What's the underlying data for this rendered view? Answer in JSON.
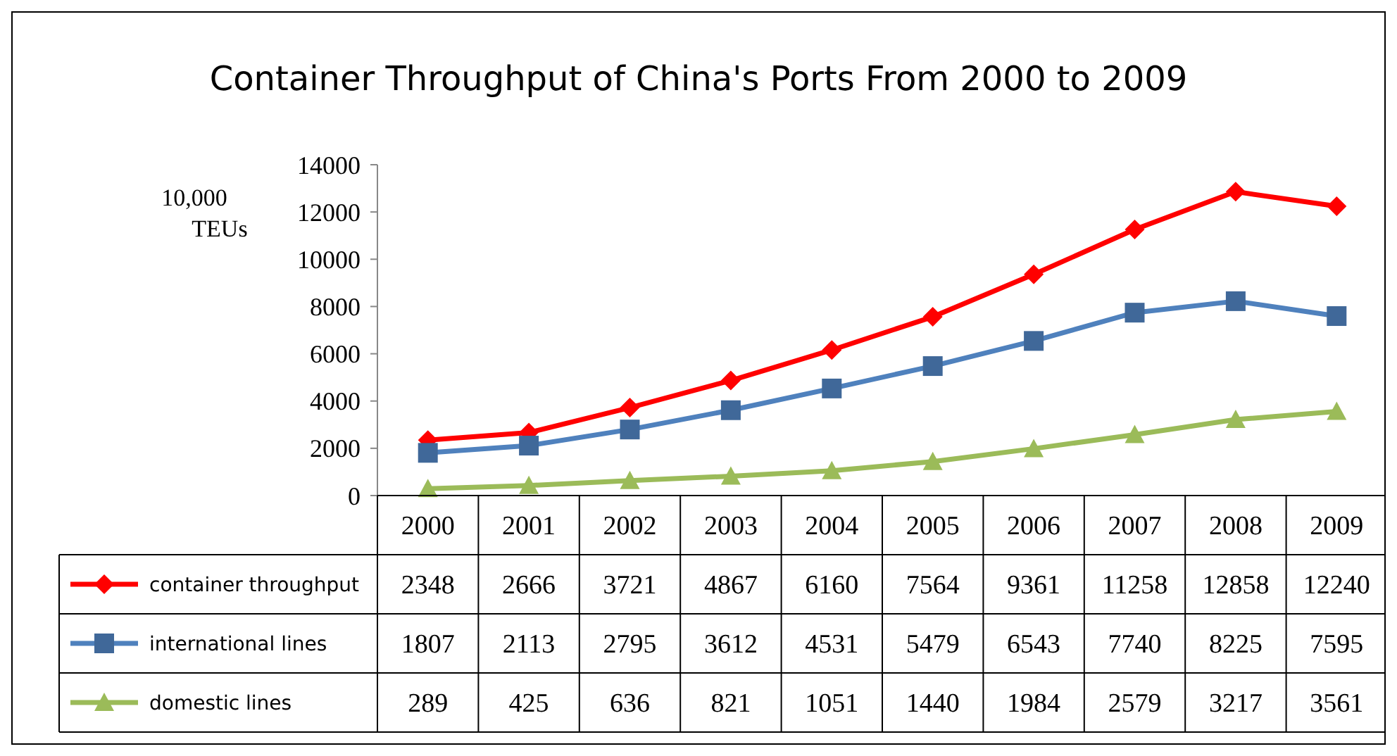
{
  "chart_data": {
    "type": "line",
    "title": "Container Throughput of China's Ports From 2000 to 2009",
    "ylabel": "10,000 TEUs",
    "categories": [
      "2000",
      "2001",
      "2002",
      "2003",
      "2004",
      "2005",
      "2006",
      "2007",
      "2008",
      "2009"
    ],
    "series": [
      {
        "name": "container throughput",
        "color": "#ff0000",
        "marker": "diamond",
        "values": [
          2348,
          2666,
          3721,
          4867,
          6160,
          7564,
          9361,
          11258,
          12858,
          12240
        ]
      },
      {
        "name": "international lines",
        "color": "#4f81bd",
        "marker": "square",
        "values": [
          1807,
          2113,
          2795,
          3612,
          4531,
          5479,
          6543,
          7740,
          8225,
          7595
        ]
      },
      {
        "name": "domestic lines",
        "color": "#9bbb59",
        "marker": "triangle",
        "values": [
          289,
          425,
          636,
          821,
          1051,
          1440,
          1984,
          2579,
          3217,
          3561
        ]
      }
    ],
    "ylim": [
      0,
      14000
    ],
    "yticks": [
      0,
      2000,
      4000,
      6000,
      8000,
      10000,
      12000,
      14000
    ],
    "grid": false,
    "legend": "bottom",
    "data_labels": true,
    "line_style": "solid"
  }
}
